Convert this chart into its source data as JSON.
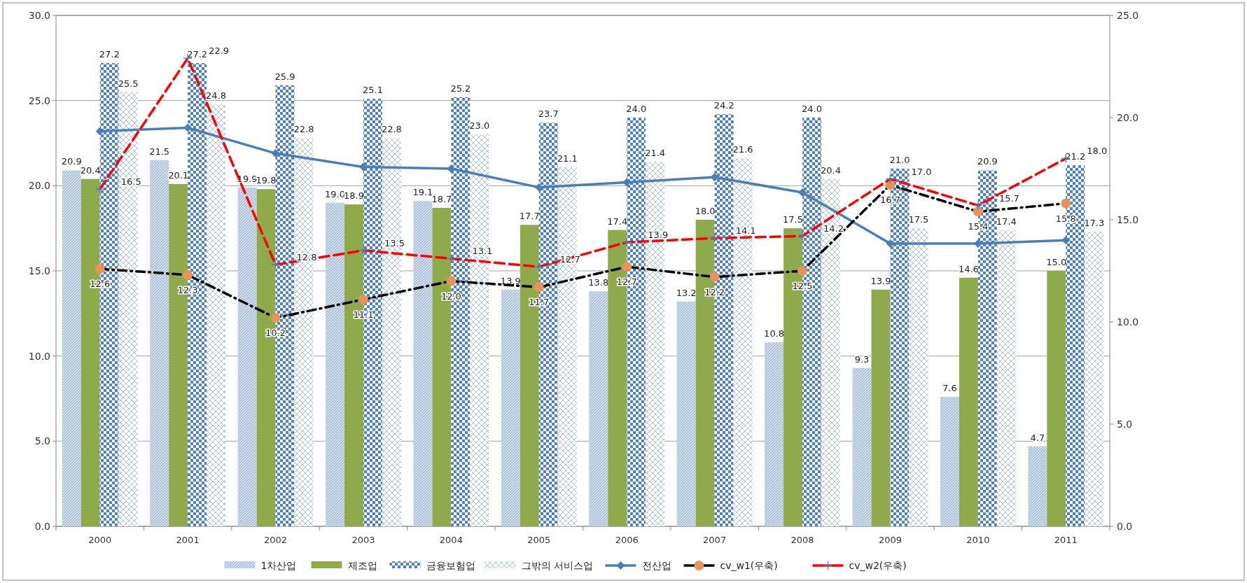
{
  "chart_data": {
    "type": "bar",
    "categories": [
      "2000",
      "2001",
      "2002",
      "2003",
      "2004",
      "2005",
      "2006",
      "2007",
      "2008",
      "2009",
      "2010",
      "2011"
    ],
    "ylim": [
      0,
      30
    ],
    "yticks": [
      {
        "value": 0,
        "label": "0.0"
      },
      {
        "value": 5,
        "label": "5.0"
      },
      {
        "value": 10,
        "label": "10.0"
      },
      {
        "value": 15,
        "label": "15.0"
      },
      {
        "value": 20,
        "label": "20.0"
      },
      {
        "value": 25,
        "label": "25.0"
      },
      {
        "value": 30,
        "label": "30.0"
      }
    ],
    "y2lim": [
      0,
      25
    ],
    "y2ticks": [
      {
        "value": 0,
        "label": "0.0"
      },
      {
        "value": 5,
        "label": "5.0"
      },
      {
        "value": 10,
        "label": "10.0"
      },
      {
        "value": 15,
        "label": "15.0"
      },
      {
        "value": 20,
        "label": "20.0"
      },
      {
        "value": 25,
        "label": "25.0"
      }
    ],
    "grid": "y",
    "legend": "bottom",
    "series": [
      {
        "name": "1차산업",
        "color": "#9bb7d4",
        "values": [
          20.9,
          21.5,
          19.9,
          19.0,
          19.1,
          13.9,
          13.8,
          13.2,
          10.8,
          9.3,
          7.6,
          4.7
        ],
        "value_labels": [
          "20.9",
          "21.5",
          "19.9",
          "19.0",
          "19.1",
          "13.9",
          "13.8",
          "13.2",
          "10.8",
          "9.3",
          "7.6",
          "4.7"
        ]
      },
      {
        "name": "제조업",
        "color": "#8faa4a",
        "values": [
          20.4,
          20.1,
          19.8,
          18.9,
          18.7,
          17.7,
          17.4,
          18.0,
          17.5,
          13.9,
          14.6,
          15.0
        ],
        "value_labels": [
          "20.4",
          "20.1",
          "19.8",
          "18.9",
          "18.7",
          "17.7",
          "17.4",
          "18.0",
          "17.5",
          "13.9",
          "14.6",
          "15.0"
        ]
      },
      {
        "name": "금융보험업",
        "color": "#4f81bd",
        "values": [
          27.2,
          27.2,
          25.9,
          25.1,
          25.2,
          23.7,
          24.0,
          24.2,
          24.0,
          21.0,
          20.9,
          21.2
        ],
        "value_labels": [
          "27.2",
          "27.2",
          "25.9",
          "25.1",
          "25.2",
          "23.7",
          "24.0",
          "24.2",
          "24.0",
          "21.0",
          "20.9",
          "21.2"
        ]
      },
      {
        "name": "그밖의 서비스업",
        "color": "#9db8dd",
        "values": [
          25.5,
          24.8,
          22.8,
          22.8,
          23.0,
          21.1,
          21.4,
          21.6,
          20.4,
          17.5,
          17.4,
          17.3
        ],
        "value_labels": [
          "25.5",
          "24.8",
          "22.8",
          "22.8",
          "23.0",
          "21.1",
          "21.4",
          "21.6",
          "20.4",
          "17.5",
          "17.4",
          "17.3"
        ]
      },
      {
        "name": "전산업",
        "type": "line",
        "color": "#4a7ebb",
        "marker": "diamond",
        "line_style": "solid",
        "values": [
          23.2,
          23.4,
          21.9,
          21.1,
          21.0,
          19.9,
          20.2,
          20.5,
          19.6,
          16.6,
          16.6,
          16.8
        ]
      },
      {
        "name": "cv_w1(우축)",
        "type": "line",
        "axis": "y2",
        "color": "#000000",
        "colors": [
          "#e8935a",
          "#e8935a",
          "#e8935a",
          "#e8935a",
          "#e8935a",
          "#e8935a",
          "#e8935a",
          "#e8935a",
          "#e8935a",
          "#e8935a",
          "#e8935a",
          "#e8935a"
        ],
        "marker": "circle",
        "line_style": "dashdot",
        "values": [
          12.6,
          12.3,
          10.2,
          11.1,
          12.0,
          11.7,
          12.7,
          12.2,
          12.5,
          16.7,
          15.4,
          15.8
        ],
        "value_labels": [
          "12.6",
          "12.3",
          "10.2",
          "11.1",
          "12.0",
          "11.7",
          "12.7",
          "12.2",
          "12.5",
          "16.7",
          "15.4",
          "15.8"
        ]
      },
      {
        "name": "cv_w2(우축)",
        "type": "line",
        "axis": "y2",
        "color": "#ff0000",
        "colors": [
          "#4f81bd",
          "#4f81bd",
          "#4f81bd",
          "#4f81bd",
          "#4f81bd",
          "#4f81bd",
          "#4f81bd",
          "#4f81bd",
          "#4f81bd",
          "#4f81bd",
          "#4f81bd",
          "#4f81bd"
        ],
        "marker": "cross",
        "line_style": "dashed",
        "values": [
          16.5,
          22.9,
          12.8,
          13.5,
          13.1,
          12.7,
          13.9,
          14.1,
          14.2,
          17.0,
          15.7,
          18.0
        ],
        "value_labels": [
          "16.5",
          "22.9",
          "12.8",
          "13.5",
          "13.1",
          "12.7",
          "13.9",
          "14.1",
          "14.2",
          "17.0",
          "15.7",
          "18.0"
        ]
      }
    ]
  }
}
